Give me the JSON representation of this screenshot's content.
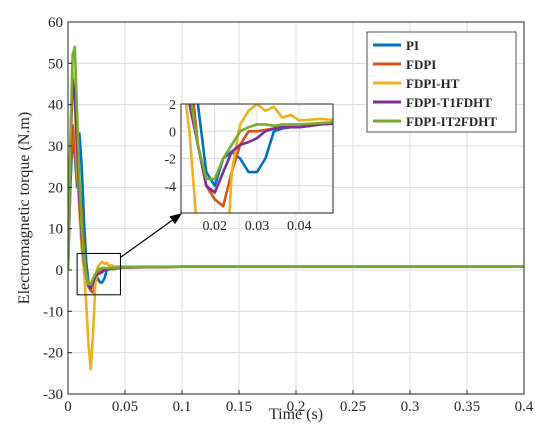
{
  "chart_data": {
    "type": "line",
    "xlabel": "Time (s)",
    "ylabel": "Electromagnetic torque (N.m)",
    "xlim": [
      0,
      0.4
    ],
    "ylim": [
      -30,
      60
    ],
    "x_ticks": [
      "0",
      "0.05",
      "0.1",
      "0.15",
      "0.2",
      "0.25",
      "0.3",
      "0.35",
      "0.4"
    ],
    "y_ticks": [
      "-30",
      "-20",
      "-10",
      "0",
      "10",
      "20",
      "30",
      "40",
      "50",
      "60"
    ],
    "grid": true,
    "legend_position": "top-right",
    "series": [
      {
        "name": "PI",
        "color": "#0072BD",
        "x": [
          0,
          0.002,
          0.004,
          0.006,
          0.008,
          0.01,
          0.012,
          0.014,
          0.016,
          0.018,
          0.02,
          0.022,
          0.024,
          0.026,
          0.028,
          0.03,
          0.032,
          0.034,
          0.036,
          0.038,
          0.04,
          0.045,
          0.05,
          0.1,
          0.2,
          0.3,
          0.4
        ],
        "y": [
          0,
          20,
          32,
          28,
          20,
          33,
          25,
          12,
          2,
          -3,
          -4,
          -2,
          -1.5,
          -2,
          -3,
          -3,
          -2,
          0,
          0.2,
          0.3,
          0.3,
          0.5,
          0.6,
          0.8,
          0.8,
          0.8,
          0.8
        ]
      },
      {
        "name": "FDPI",
        "color": "#D95319",
        "x": [
          0,
          0.002,
          0.004,
          0.006,
          0.008,
          0.01,
          0.012,
          0.014,
          0.016,
          0.018,
          0.02,
          0.022,
          0.024,
          0.026,
          0.028,
          0.03,
          0.032,
          0.034,
          0.036,
          0.04,
          0.045,
          0.05,
          0.1,
          0.2,
          0.3,
          0.4
        ],
        "y": [
          0,
          22,
          35,
          30,
          22,
          20,
          14,
          5,
          -1,
          -4,
          -5,
          -5.5,
          -3,
          -1,
          0,
          0,
          0.1,
          0.2,
          0.3,
          0.3,
          0.5,
          0.6,
          0.8,
          0.8,
          0.8,
          0.8
        ]
      },
      {
        "name": "FDPI-HT",
        "color": "#EDB120",
        "x": [
          0,
          0.002,
          0.004,
          0.006,
          0.008,
          0.01,
          0.012,
          0.014,
          0.016,
          0.018,
          0.02,
          0.022,
          0.024,
          0.026,
          0.028,
          0.03,
          0.032,
          0.034,
          0.036,
          0.038,
          0.04,
          0.045,
          0.05,
          0.1,
          0.2,
          0.3,
          0.4
        ],
        "y": [
          0,
          30,
          48,
          40,
          25,
          14,
          5,
          0,
          -8,
          -18,
          -24,
          -15,
          -3,
          0.5,
          1.5,
          2,
          1.5,
          1.8,
          1,
          1.2,
          0.8,
          0.9,
          0.8,
          0.8,
          0.8,
          0.8,
          0.8
        ]
      },
      {
        "name": "FDPI-T1FDHT",
        "color": "#7E2F8E",
        "x": [
          0,
          0.002,
          0.004,
          0.006,
          0.008,
          0.01,
          0.012,
          0.014,
          0.016,
          0.018,
          0.02,
          0.022,
          0.024,
          0.026,
          0.028,
          0.03,
          0.032,
          0.034,
          0.036,
          0.04,
          0.045,
          0.05,
          0.1,
          0.2,
          0.3,
          0.4
        ],
        "y": [
          0,
          28,
          46,
          42,
          30,
          17,
          8,
          2,
          -1,
          -4,
          -4.5,
          -3,
          -1.5,
          -1,
          -0.8,
          -0.5,
          0,
          0.2,
          0.3,
          0.3,
          0.5,
          0.6,
          0.8,
          0.8,
          0.8,
          0.8
        ]
      },
      {
        "name": "FDPI-IT2FDHT",
        "color": "#77AC30",
        "x": [
          0,
          0.002,
          0.004,
          0.006,
          0.008,
          0.01,
          0.012,
          0.014,
          0.016,
          0.018,
          0.02,
          0.022,
          0.024,
          0.026,
          0.028,
          0.03,
          0.032,
          0.034,
          0.036,
          0.04,
          0.045,
          0.05,
          0.1,
          0.2,
          0.3,
          0.4
        ],
        "y": [
          0,
          30,
          52,
          54,
          38,
          22,
          10,
          3,
          -1,
          -3.5,
          -3.5,
          -2,
          -1,
          0,
          0.3,
          0.5,
          0.5,
          0.4,
          0.5,
          0.5,
          0.6,
          0.7,
          0.8,
          0.8,
          0.8,
          0.8
        ]
      }
    ],
    "inset": {
      "xlim": [
        0.012,
        0.048
      ],
      "ylim": [
        -6,
        2
      ],
      "x_ticks": [
        "0.02",
        "0.03",
        "0.04"
      ],
      "y_ticks": [
        "2",
        "0",
        "-2",
        "-4"
      ],
      "zoom_box": {
        "xlim": [
          0.008,
          0.046
        ],
        "ylim": [
          -6,
          4
        ]
      }
    }
  }
}
